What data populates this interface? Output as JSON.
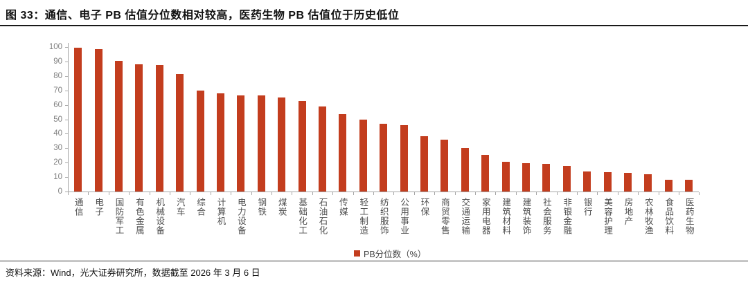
{
  "title": "图 33：通信、电子 PB 估值分位数相对较高，医药生物 PB 估值位于历史低位",
  "footer": "资料来源：Wind，光大证券研究所，数据截至 2026 年 3 月 6 日",
  "legend": {
    "label": "PB分位数（%）"
  },
  "colors": {
    "bar": "#c33d1e",
    "axis": "#a6a6a6",
    "ytick_label": "#7f7f7f",
    "category_label": "#4d4d4d",
    "title_text": "#111111"
  },
  "chart_data": {
    "type": "bar",
    "title": "图 33：通信、电子 PB 估值分位数相对较高，医药生物 PB 估值位于历史低位",
    "categories": [
      "通信",
      "电子",
      "国防军工",
      "有色金属",
      "机械设备",
      "汽车",
      "综合",
      "计算机",
      "电力设备",
      "钢铁",
      "煤炭",
      "基础化工",
      "石油石化",
      "传媒",
      "轻工制造",
      "纺织服饰",
      "公用事业",
      "环保",
      "商贸零售",
      "交通运输",
      "家用电器",
      "建筑材料",
      "建筑装饰",
      "社会服务",
      "非银金融",
      "银行",
      "美容护理",
      "房地产",
      "农林牧渔",
      "食品饮料",
      "医药生物"
    ],
    "values": [
      99.5,
      98.5,
      90.5,
      88,
      87.5,
      81.5,
      70,
      68,
      66.5,
      66.5,
      65,
      62.5,
      59,
      53.5,
      50,
      47,
      46,
      38.5,
      36,
      30,
      25.5,
      20.5,
      19.5,
      19,
      17.5,
      14,
      13.5,
      13,
      12,
      8,
      8
    ],
    "xlabel": "",
    "ylabel": "",
    "ylim": [
      0,
      100
    ],
    "yticks": [
      0,
      10,
      20,
      30,
      40,
      50,
      60,
      70,
      80,
      90,
      100
    ],
    "grid": false,
    "legend": [
      "PB分位数（%）"
    ],
    "legend_position": "bottom"
  }
}
